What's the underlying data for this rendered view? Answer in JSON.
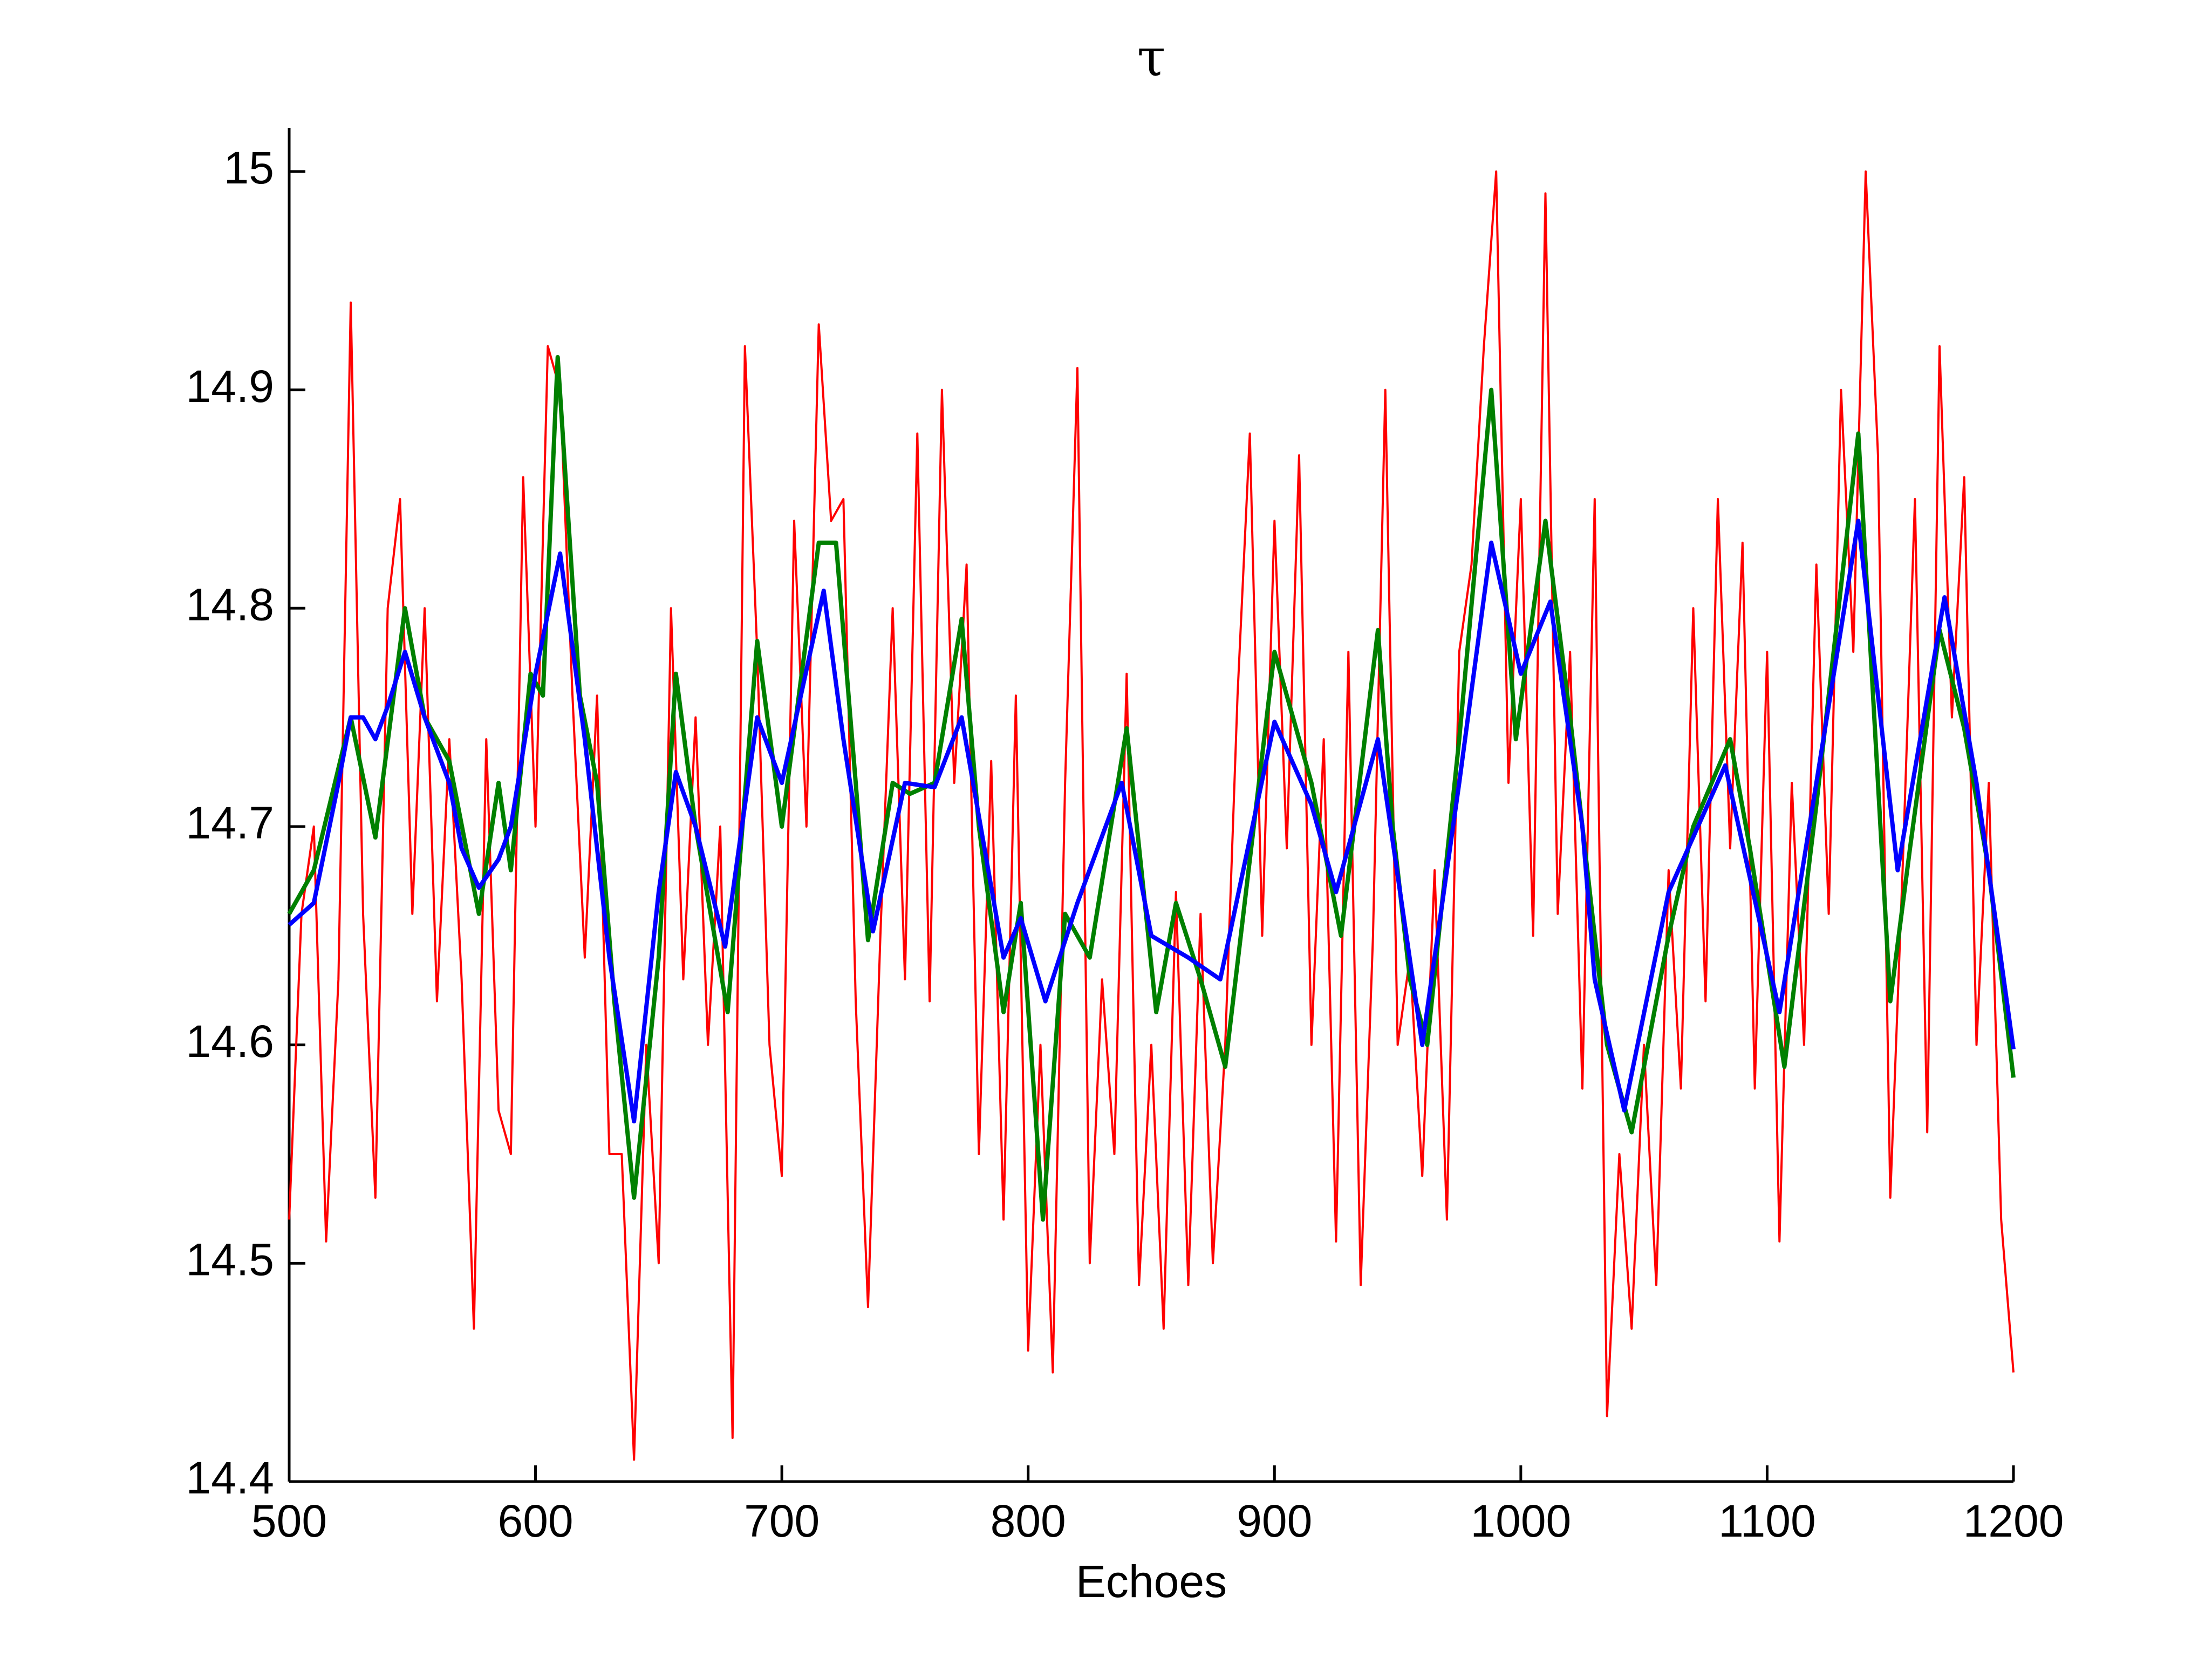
{
  "chart_data": {
    "type": "line",
    "title": "τ",
    "xlabel": "Echoes",
    "xlim": [
      500,
      1200
    ],
    "xticks": [
      500,
      600,
      700,
      800,
      900,
      1000,
      1100,
      1200
    ],
    "ylim": [
      14.4,
      15.02
    ],
    "yticks": [
      14.4,
      14.5,
      14.6,
      14.7,
      14.8,
      14.9,
      15
    ],
    "grid": false,
    "series": [
      {
        "color": "#ff0000",
        "width": 4,
        "x": [
          500,
          505,
          510,
          515,
          520,
          525,
          530,
          535,
          540,
          545,
          550,
          555,
          560,
          565,
          570,
          575,
          580,
          585,
          590,
          595,
          600,
          605,
          610,
          615,
          620,
          625,
          630,
          635,
          640,
          645,
          650,
          655,
          660,
          665,
          670,
          675,
          680,
          685,
          690,
          695,
          700,
          705,
          710,
          715,
          720,
          725,
          730,
          735,
          740,
          745,
          750,
          755,
          760,
          765,
          770,
          775,
          780,
          785,
          790,
          795,
          800,
          805,
          810,
          815,
          820,
          825,
          830,
          835,
          840,
          845,
          850,
          855,
          860,
          865,
          870,
          875,
          880,
          885,
          890,
          895,
          900,
          905,
          910,
          915,
          920,
          925,
          930,
          935,
          940,
          945,
          950,
          955,
          960,
          965,
          970,
          975,
          980,
          985,
          990,
          995,
          1000,
          1005,
          1010,
          1015,
          1020,
          1025,
          1030,
          1035,
          1040,
          1045,
          1050,
          1055,
          1060,
          1065,
          1070,
          1075,
          1080,
          1085,
          1090,
          1095,
          1100,
          1105,
          1110,
          1115,
          1120,
          1125,
          1130,
          1135,
          1140,
          1145,
          1150,
          1155,
          1160,
          1165,
          1170,
          1175,
          1180,
          1185,
          1190,
          1195,
          1200
        ],
        "values": [
          14.52,
          14.66,
          14.7,
          14.51,
          14.63,
          14.94,
          14.66,
          14.53,
          14.8,
          14.85,
          14.66,
          14.8,
          14.62,
          14.74,
          14.63,
          14.47,
          14.74,
          14.57,
          14.55,
          14.86,
          14.7,
          14.92,
          14.9,
          14.76,
          14.64,
          14.76,
          14.55,
          14.55,
          14.41,
          14.6,
          14.5,
          14.8,
          14.63,
          14.75,
          14.6,
          14.7,
          14.42,
          14.92,
          14.78,
          14.6,
          14.54,
          14.84,
          14.7,
          14.93,
          14.84,
          14.85,
          14.62,
          14.48,
          14.65,
          14.8,
          14.63,
          14.88,
          14.62,
          14.9,
          14.72,
          14.82,
          14.55,
          14.73,
          14.52,
          14.76,
          14.46,
          14.6,
          14.45,
          14.72,
          14.91,
          14.5,
          14.63,
          14.55,
          14.77,
          14.49,
          14.6,
          14.47,
          14.67,
          14.49,
          14.66,
          14.5,
          14.6,
          14.76,
          14.88,
          14.65,
          14.84,
          14.69,
          14.87,
          14.6,
          14.74,
          14.51,
          14.78,
          14.49,
          14.65,
          14.9,
          14.6,
          14.64,
          14.54,
          14.68,
          14.52,
          14.78,
          14.82,
          14.92,
          15.0,
          14.72,
          14.85,
          14.65,
          14.99,
          14.66,
          14.78,
          14.58,
          14.85,
          14.43,
          14.55,
          14.47,
          14.6,
          14.49,
          14.68,
          14.58,
          14.8,
          14.62,
          14.85,
          14.69,
          14.83,
          14.58,
          14.78,
          14.51,
          14.72,
          14.6,
          14.82,
          14.66,
          14.9,
          14.78,
          15.0,
          14.87,
          14.53,
          14.68,
          14.85,
          14.56,
          14.92,
          14.75,
          14.86,
          14.6,
          14.72,
          14.52,
          14.45
        ]
      },
      {
        "color": "#008000",
        "width": 8,
        "x": [
          500,
          510,
          525,
          535,
          547,
          555,
          565,
          577,
          585,
          590,
          598,
          603,
          609,
          618,
          625,
          632,
          640,
          650,
          657,
          665,
          678,
          690,
          700,
          715,
          722,
          730,
          735,
          745,
          752,
          762,
          773,
          780,
          790,
          797,
          806,
          815,
          825,
          840,
          852,
          860,
          870,
          880,
          900,
          915,
          927,
          942,
          948,
          955,
          962,
          975,
          988,
          998,
          1010,
          1020,
          1035,
          1045,
          1060,
          1070,
          1085,
          1093,
          1107,
          1120,
          1137,
          1150,
          1158,
          1170,
          1180,
          1190,
          1200
        ],
        "values": [
          14.66,
          14.68,
          14.75,
          14.695,
          14.8,
          14.75,
          14.73,
          14.66,
          14.72,
          14.68,
          14.77,
          14.76,
          14.915,
          14.76,
          14.72,
          14.62,
          14.53,
          14.64,
          14.77,
          14.7,
          14.615,
          14.785,
          14.7,
          14.83,
          14.83,
          14.72,
          14.648,
          14.72,
          14.715,
          14.72,
          14.795,
          14.7,
          14.615,
          14.665,
          14.52,
          14.66,
          14.64,
          14.745,
          14.615,
          14.665,
          14.63,
          14.59,
          14.78,
          14.72,
          14.65,
          14.79,
          14.7,
          14.63,
          14.6,
          14.74,
          14.9,
          14.74,
          14.84,
          14.75,
          14.6,
          14.56,
          14.65,
          14.7,
          14.74,
          14.69,
          14.59,
          14.71,
          14.88,
          14.62,
          14.69,
          14.79,
          14.745,
          14.68,
          14.585
        ]
      },
      {
        "color": "#0000ff",
        "width": 8,
        "x": [
          500,
          510,
          520,
          525,
          530,
          535,
          540,
          547,
          555,
          565,
          570,
          577,
          585,
          590,
          600,
          610,
          620,
          630,
          640,
          650,
          657,
          665,
          677,
          690,
          700,
          717,
          725,
          737,
          750,
          762,
          773,
          790,
          797,
          807,
          820,
          838,
          850,
          865,
          878,
          900,
          915,
          925,
          942,
          960,
          975,
          988,
          1000,
          1012,
          1025,
          1030,
          1042,
          1060,
          1083,
          1105,
          1120,
          1137,
          1153,
          1172,
          1185,
          1200
        ],
        "values": [
          14.655,
          14.665,
          14.72,
          14.75,
          14.75,
          14.74,
          14.755,
          14.78,
          14.75,
          14.72,
          14.69,
          14.672,
          14.685,
          14.7,
          14.77,
          14.825,
          14.74,
          14.64,
          14.565,
          14.67,
          14.725,
          14.7,
          14.645,
          14.75,
          14.72,
          14.808,
          14.74,
          14.652,
          14.72,
          14.718,
          14.75,
          14.64,
          14.658,
          14.62,
          14.665,
          14.72,
          14.65,
          14.64,
          14.63,
          14.748,
          14.71,
          14.67,
          14.74,
          14.6,
          14.72,
          14.83,
          14.77,
          14.803,
          14.7,
          14.63,
          14.57,
          14.67,
          14.728,
          14.615,
          14.72,
          14.84,
          14.68,
          14.805,
          14.72,
          14.598
        ]
      }
    ]
  }
}
